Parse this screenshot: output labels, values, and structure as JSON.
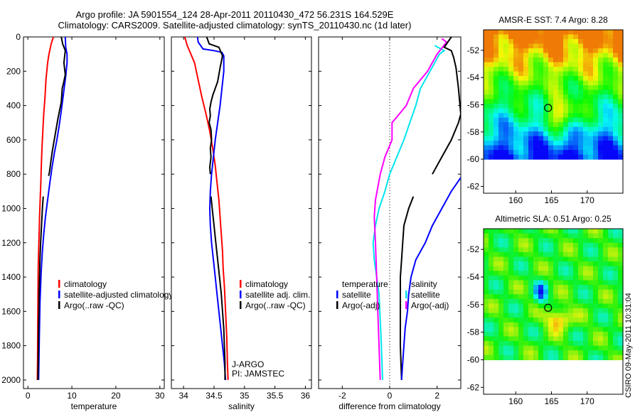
{
  "header": {
    "line1": "Argo profile: JA 5901554_124 28-Apr-2011 20110430_472 56.231S 164.529E",
    "line2": "Climatology: CARS2009. Satellite-adjusted climatology: synTS_20110430.nc (1d later)"
  },
  "stamp": "CSIRO 09-May-2011 10:31:04",
  "colors": {
    "climatology": "#ff0000",
    "satellite": "#0000ff",
    "argo": "#000000",
    "temp_diff": "#00e5ee",
    "sal_diff": "#ff00ff"
  },
  "chart_data": [
    {
      "type": "line",
      "xlabel": "temperature",
      "ylim": [
        2050,
        0
      ],
      "xlim": [
        -1,
        31
      ],
      "xticks": [
        "0",
        "10",
        "20",
        "30"
      ],
      "yticks": [
        "0",
        "200",
        "400",
        "600",
        "800",
        "1000",
        "1200",
        "1400",
        "1600",
        "1800",
        "2000"
      ],
      "legend": [
        "climatology",
        "satellite-adjusted climatology",
        "Argo(..raw -QC)"
      ],
      "series": [
        {
          "name": "climatology",
          "color": "#ff0000",
          "points": [
            [
              5.8,
              0
            ],
            [
              5.3,
              40
            ],
            [
              4.8,
              100
            ],
            [
              4.5,
              150
            ],
            [
              4.1,
              250
            ],
            [
              3.9,
              350
            ],
            [
              3.6,
              450
            ],
            [
              3.4,
              550
            ],
            [
              3.2,
              650
            ],
            [
              3.05,
              750
            ],
            [
              2.95,
              850
            ],
            [
              2.8,
              950
            ],
            [
              2.65,
              1050
            ],
            [
              2.55,
              1150
            ],
            [
              2.45,
              1250
            ],
            [
              2.35,
              1350
            ],
            [
              2.3,
              1500
            ],
            [
              2.25,
              1700
            ],
            [
              2.2,
              1900
            ],
            [
              2.15,
              2000
            ]
          ]
        },
        {
          "name": "satellite-adjusted climatology",
          "color": "#0000ff",
          "points": [
            [
              8.5,
              0
            ],
            [
              8.6,
              60
            ],
            [
              8.9,
              100
            ],
            [
              8.9,
              150
            ],
            [
              8.6,
              230
            ],
            [
              8.1,
              330
            ],
            [
              7.6,
              430
            ],
            [
              7.1,
              520
            ],
            [
              6.6,
              600
            ],
            [
              6.0,
              680
            ],
            [
              5.5,
              760
            ],
            [
              5.0,
              850
            ],
            [
              4.5,
              950
            ],
            [
              4.0,
              1050
            ],
            [
              3.6,
              1150
            ],
            [
              3.3,
              1250
            ],
            [
              3.0,
              1380
            ],
            [
              2.75,
              1550
            ],
            [
              2.6,
              1750
            ],
            [
              2.5,
              1900
            ],
            [
              2.45,
              2000
            ]
          ]
        },
        {
          "name": "Argo(..raw -QC)",
          "color": "#000000",
          "points": [
            [
              7.6,
              0
            ],
            [
              7.9,
              40
            ],
            [
              8.5,
              80
            ],
            [
              8.2,
              150
            ],
            [
              8.5,
              220
            ],
            [
              8.1,
              270
            ],
            [
              7.8,
              300
            ],
            [
              7.6,
              380
            ],
            [
              7.2,
              430
            ],
            [
              6.8,
              480
            ],
            [
              6.4,
              540
            ],
            [
              6.0,
              600
            ],
            [
              5.6,
              660
            ],
            [
              5.2,
              730
            ],
            [
              4.9,
              790
            ],
            [
              4.7,
              810
            ]
          ]
        },
        {
          "name": "Argo(..raw -QC)",
          "color": "#000000",
          "points": [
            [
              3.5,
              930
            ],
            [
              3.3,
              1000
            ],
            [
              3.1,
              1100
            ],
            [
              2.9,
              1200
            ],
            [
              2.75,
              1300
            ],
            [
              2.65,
              1400
            ],
            [
              2.55,
              1500
            ],
            [
              2.5,
              1600
            ],
            [
              2.45,
              1700
            ],
            [
              2.4,
              1800
            ],
            [
              2.35,
              1900
            ],
            [
              2.3,
              2000
            ]
          ]
        }
      ]
    },
    {
      "type": "line",
      "xlabel": "salinity",
      "ylim": [
        2050,
        0
      ],
      "xlim": [
        33.8,
        36.1
      ],
      "xticks": [
        "34",
        "34.5",
        "35",
        "35.5",
        "36"
      ],
      "legend": [
        "climatology",
        "satellite adj. clim.",
        "Argo(..raw -QC)"
      ],
      "annotations": [
        "J-ARGO",
        "PI: JAMSTEC"
      ],
      "series": [
        {
          "name": "climatology",
          "color": "#ff0000",
          "points": [
            [
              34.02,
              0
            ],
            [
              34.06,
              50
            ],
            [
              34.12,
              100
            ],
            [
              34.18,
              150
            ],
            [
              34.24,
              250
            ],
            [
              34.3,
              350
            ],
            [
              34.37,
              450
            ],
            [
              34.43,
              550
            ],
            [
              34.48,
              650
            ],
            [
              34.52,
              750
            ],
            [
              34.55,
              850
            ],
            [
              34.58,
              950
            ],
            [
              34.6,
              1050
            ],
            [
              34.62,
              1150
            ],
            [
              34.64,
              1250
            ],
            [
              34.65,
              1350
            ],
            [
              34.67,
              1450
            ],
            [
              34.69,
              1600
            ],
            [
              34.71,
              1750
            ],
            [
              34.72,
              1900
            ],
            [
              34.73,
              2000
            ]
          ]
        },
        {
          "name": "satellite adj. clim.",
          "color": "#0000ff",
          "points": [
            [
              34.23,
              0
            ],
            [
              34.24,
              30
            ],
            [
              34.32,
              70
            ],
            [
              34.5,
              80
            ],
            [
              34.63,
              90
            ],
            [
              34.66,
              110
            ],
            [
              34.66,
              200
            ],
            [
              34.63,
              300
            ],
            [
              34.6,
              400
            ],
            [
              34.56,
              500
            ],
            [
              34.52,
              600
            ],
            [
              34.49,
              700
            ],
            [
              34.46,
              800
            ],
            [
              34.44,
              900
            ],
            [
              34.43,
              1000
            ],
            [
              34.44,
              1100
            ],
            [
              34.46,
              1200
            ],
            [
              34.49,
              1300
            ],
            [
              34.52,
              1400
            ],
            [
              34.55,
              1500
            ],
            [
              34.58,
              1600
            ],
            [
              34.61,
              1700
            ],
            [
              34.64,
              1800
            ],
            [
              34.67,
              1900
            ],
            [
              34.69,
              2000
            ]
          ]
        },
        {
          "name": "Argo(..raw -QC)",
          "color": "#000000",
          "points": [
            [
              34.38,
              0
            ],
            [
              34.42,
              40
            ],
            [
              34.58,
              60
            ],
            [
              34.64,
              110
            ],
            [
              34.6,
              180
            ],
            [
              34.56,
              260
            ],
            [
              34.52,
              300
            ],
            [
              34.48,
              340
            ],
            [
              34.45,
              380
            ],
            [
              34.43,
              420
            ],
            [
              34.44,
              460
            ],
            [
              34.42,
              500
            ],
            [
              34.45,
              540
            ],
            [
              34.46,
              600
            ],
            [
              34.44,
              650
            ],
            [
              34.45,
              700
            ],
            [
              34.43,
              760
            ],
            [
              34.44,
              800
            ]
          ]
        },
        {
          "name": "Argo(..raw -QC)",
          "color": "#000000",
          "points": [
            [
              34.45,
              930
            ],
            [
              34.47,
              1000
            ],
            [
              34.5,
              1100
            ],
            [
              34.53,
              1200
            ],
            [
              34.56,
              1300
            ],
            [
              34.59,
              1400
            ],
            [
              34.62,
              1500
            ],
            [
              34.64,
              1600
            ],
            [
              34.66,
              1700
            ],
            [
              34.67,
              1800
            ],
            [
              34.68,
              1900
            ],
            [
              34.68,
              2000
            ]
          ]
        }
      ]
    },
    {
      "type": "line",
      "xlabel": "difference from climatology",
      "ylim": [
        2050,
        0
      ],
      "xlim": [
        -3,
        3
      ],
      "xticks": [
        "-2",
        "0",
        "2"
      ],
      "legend": [
        "temperature",
        "satellite",
        "Argo(-adj)",
        "salinity",
        "satellite",
        "Argo(-adj)"
      ],
      "series": [
        {
          "name": "temperature satellite",
          "color": "#00e5ee",
          "points": [
            [
              1.9,
              50
            ],
            [
              2.3,
              80
            ],
            [
              2.1,
              100
            ],
            [
              1.7,
              200
            ],
            [
              1.3,
              300
            ],
            [
              1.1,
              400
            ],
            [
              0.85,
              500
            ],
            [
              0.6,
              600
            ],
            [
              0.3,
              700
            ],
            [
              0.0,
              800
            ],
            [
              -0.2,
              900
            ],
            [
              -0.45,
              1000
            ],
            [
              -0.6,
              1100
            ],
            [
              -0.7,
              1200
            ],
            [
              -0.65,
              1300
            ],
            [
              -0.55,
              1400
            ],
            [
              -0.45,
              1500
            ],
            [
              -0.4,
              1650
            ],
            [
              -0.35,
              1800
            ],
            [
              -0.3,
              2000
            ]
          ]
        },
        {
          "name": "salinity satellite",
          "color": "#ff00ff",
          "points": [
            [
              2.2,
              10
            ],
            [
              2.4,
              30
            ],
            [
              2.0,
              100
            ],
            [
              1.6,
              200
            ],
            [
              1.0,
              300
            ],
            [
              0.7,
              400
            ],
            [
              0.4,
              450
            ],
            [
              0.1,
              500
            ],
            [
              0.1,
              600
            ],
            [
              -0.2,
              700
            ],
            [
              -0.4,
              800
            ],
            [
              -0.6,
              950
            ],
            [
              -0.65,
              1050
            ],
            [
              -0.6,
              1200
            ],
            [
              -0.55,
              1400
            ],
            [
              -0.5,
              1600
            ],
            [
              -0.45,
              1800
            ],
            [
              -0.4,
              2000
            ]
          ]
        },
        {
          "name": "temperature Argo(-adj)",
          "color": "#000000",
          "points": [
            [
              2.6,
              0
            ],
            [
              2.3,
              60
            ],
            [
              2.6,
              80
            ],
            [
              2.7,
              120
            ],
            [
              2.8,
              180
            ],
            [
              2.9,
              300
            ],
            [
              3.0,
              450
            ],
            [
              2.9,
              500
            ],
            [
              2.6,
              600
            ],
            [
              2.2,
              700
            ],
            [
              1.8,
              800
            ]
          ]
        },
        {
          "name": "temperature Argo(-adj)",
          "color": "#000000",
          "points": [
            [
              1.0,
              930
            ],
            [
              0.8,
              1000
            ],
            [
              0.6,
              1100
            ],
            [
              0.55,
              1200
            ],
            [
              0.5,
              1300
            ],
            [
              0.45,
              1400
            ],
            [
              0.45,
              1600
            ],
            [
              0.45,
              1800
            ],
            [
              0.5,
              2000
            ]
          ]
        },
        {
          "name": "salinity Argo(-adj)",
          "color": "#0000ff",
          "points": [
            [
              3.0,
              820
            ],
            [
              2.6,
              900
            ],
            [
              2.2,
              1000
            ],
            [
              1.8,
              1100
            ],
            [
              1.5,
              1200
            ],
            [
              1.1,
              1300
            ],
            [
              0.9,
              1400
            ],
            [
              0.8,
              1500
            ],
            [
              0.75,
              1600
            ],
            [
              0.65,
              1700
            ],
            [
              0.6,
              1800
            ],
            [
              0.55,
              1900
            ],
            [
              0.5,
              2000
            ]
          ]
        }
      ]
    },
    {
      "type": "heatmap",
      "title": "AMSR-E SST: 7.4 Argo: 8.28",
      "xticks": [
        "160",
        "165",
        "170"
      ],
      "yticks": [
        "-52",
        "-54",
        "-56",
        "-58",
        "-60",
        "-62"
      ],
      "xlim": [
        155.5,
        175
      ],
      "ylim": [
        -62.5,
        -50.5
      ],
      "marker": {
        "lon": 164.529,
        "lat": -56.231
      }
    },
    {
      "type": "heatmap",
      "title": "Altimetric SLA: 0.51 Argo: 0.25",
      "xticks": [
        "160",
        "165",
        "170"
      ],
      "yticks": [
        "-52",
        "-54",
        "-56",
        "-58",
        "-60",
        "-62"
      ],
      "xlim": [
        155.5,
        175
      ],
      "ylim": [
        -62.5,
        -50.5
      ],
      "marker": {
        "lon": 164.529,
        "lat": -56.231
      }
    }
  ]
}
